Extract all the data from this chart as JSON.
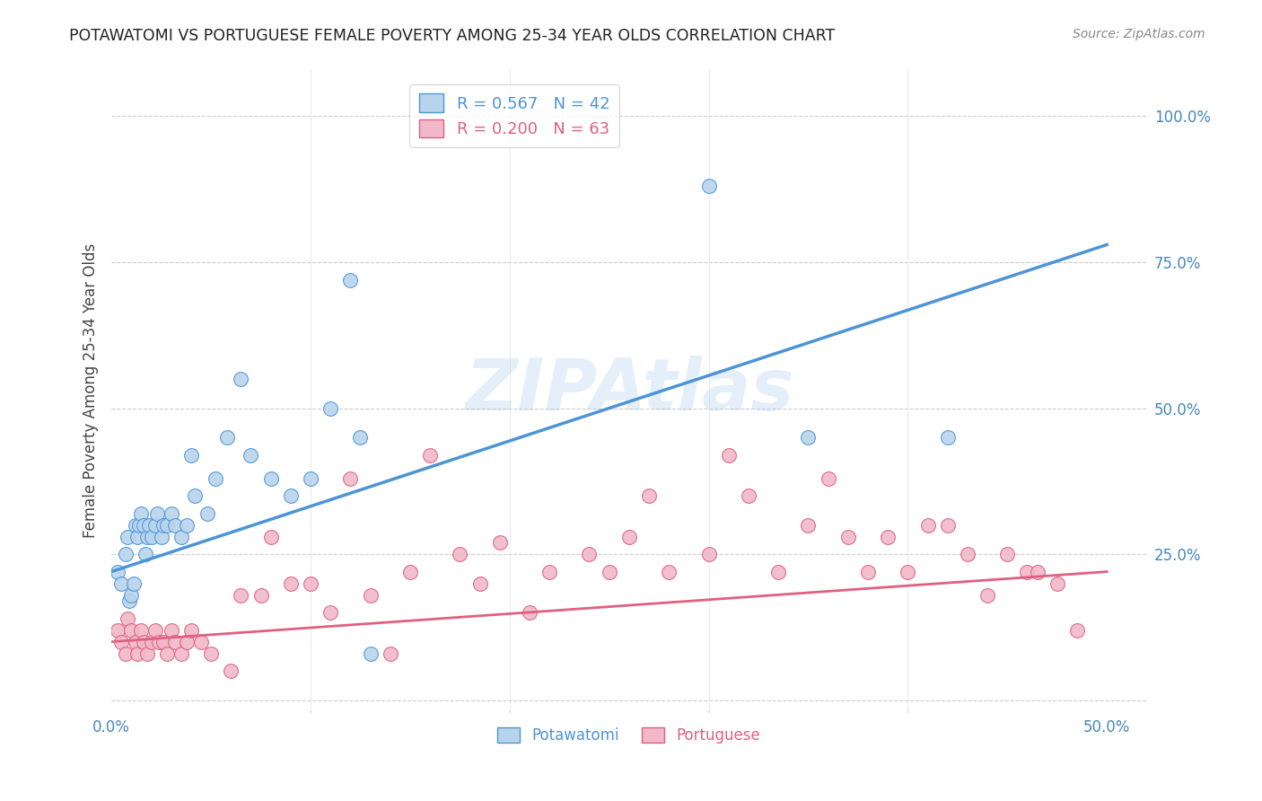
{
  "title": "POTAWATOMI VS PORTUGUESE FEMALE POVERTY AMONG 25-34 YEAR OLDS CORRELATION CHART",
  "source": "Source: ZipAtlas.com",
  "ylabel": "Female Poverty Among 25-34 Year Olds",
  "xlim": [
    0.0,
    0.52
  ],
  "ylim": [
    -0.02,
    1.08
  ],
  "xticks": [
    0.0,
    0.1,
    0.2,
    0.3,
    0.4,
    0.5
  ],
  "xtick_labels": [
    "0.0%",
    "",
    "",
    "",
    "",
    "50.0%"
  ],
  "yticks": [
    0.0,
    0.25,
    0.5,
    0.75,
    1.0
  ],
  "ytick_labels": [
    "",
    "25.0%",
    "50.0%",
    "75.0%",
    "100.0%"
  ],
  "background_color": "#ffffff",
  "grid_color": "#cccccc",
  "watermark": "ZIPAtlas",
  "potawatomi_x": [
    0.003,
    0.005,
    0.007,
    0.008,
    0.009,
    0.01,
    0.011,
    0.012,
    0.013,
    0.014,
    0.015,
    0.016,
    0.017,
    0.018,
    0.019,
    0.02,
    0.022,
    0.023,
    0.025,
    0.026,
    0.028,
    0.03,
    0.032,
    0.035,
    0.038,
    0.04,
    0.042,
    0.048,
    0.052,
    0.058,
    0.065,
    0.07,
    0.08,
    0.09,
    0.1,
    0.11,
    0.12,
    0.125,
    0.13,
    0.3,
    0.35,
    0.42
  ],
  "potawatomi_y": [
    0.22,
    0.2,
    0.25,
    0.28,
    0.17,
    0.18,
    0.2,
    0.3,
    0.28,
    0.3,
    0.32,
    0.3,
    0.25,
    0.28,
    0.3,
    0.28,
    0.3,
    0.32,
    0.28,
    0.3,
    0.3,
    0.32,
    0.3,
    0.28,
    0.3,
    0.42,
    0.35,
    0.32,
    0.38,
    0.45,
    0.55,
    0.42,
    0.38,
    0.35,
    0.38,
    0.5,
    0.72,
    0.45,
    0.08,
    0.88,
    0.45,
    0.45
  ],
  "portuguese_x": [
    0.003,
    0.005,
    0.007,
    0.008,
    0.01,
    0.012,
    0.013,
    0.015,
    0.016,
    0.018,
    0.02,
    0.022,
    0.024,
    0.026,
    0.028,
    0.03,
    0.032,
    0.035,
    0.038,
    0.04,
    0.045,
    0.05,
    0.06,
    0.065,
    0.075,
    0.08,
    0.09,
    0.1,
    0.11,
    0.12,
    0.13,
    0.14,
    0.15,
    0.16,
    0.175,
    0.185,
    0.195,
    0.21,
    0.22,
    0.24,
    0.25,
    0.26,
    0.27,
    0.28,
    0.3,
    0.31,
    0.32,
    0.335,
    0.35,
    0.36,
    0.37,
    0.38,
    0.39,
    0.4,
    0.41,
    0.42,
    0.43,
    0.44,
    0.45,
    0.46,
    0.465,
    0.475,
    0.485
  ],
  "portuguese_y": [
    0.12,
    0.1,
    0.08,
    0.14,
    0.12,
    0.1,
    0.08,
    0.12,
    0.1,
    0.08,
    0.1,
    0.12,
    0.1,
    0.1,
    0.08,
    0.12,
    0.1,
    0.08,
    0.1,
    0.12,
    0.1,
    0.08,
    0.05,
    0.18,
    0.18,
    0.28,
    0.2,
    0.2,
    0.15,
    0.38,
    0.18,
    0.08,
    0.22,
    0.42,
    0.25,
    0.2,
    0.27,
    0.15,
    0.22,
    0.25,
    0.22,
    0.28,
    0.35,
    0.22,
    0.25,
    0.42,
    0.35,
    0.22,
    0.3,
    0.38,
    0.28,
    0.22,
    0.28,
    0.22,
    0.3,
    0.3,
    0.25,
    0.18,
    0.25,
    0.22,
    0.22,
    0.2,
    0.12
  ],
  "potawatomi_color": "#4d94d6",
  "potawatomi_fill": "#b8d4ed",
  "portuguese_color": "#e06080",
  "portuguese_fill": "#f0b8c8",
  "potawatomi_R": 0.567,
  "potawatomi_N": 42,
  "portuguese_R": 0.2,
  "portuguese_N": 63,
  "potawatomi_line_x": [
    0.0,
    0.5
  ],
  "potawatomi_line_y": [
    0.22,
    0.78
  ],
  "portuguese_line_x": [
    0.0,
    0.5
  ],
  "portuguese_line_y": [
    0.1,
    0.22
  ]
}
